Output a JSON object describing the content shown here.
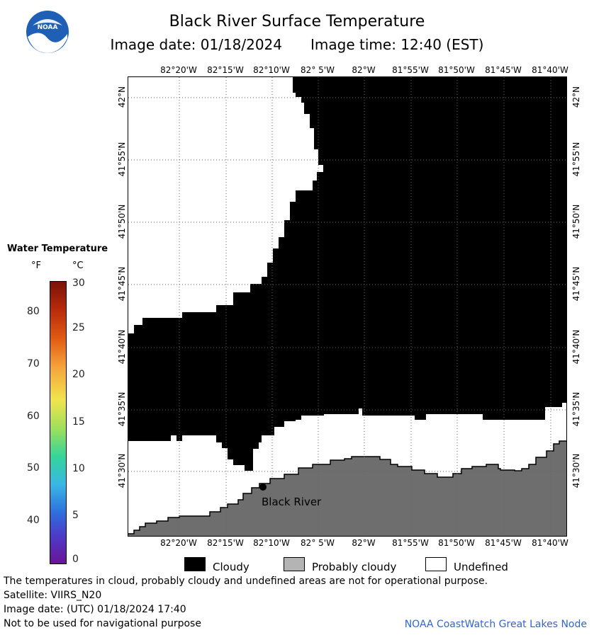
{
  "header": {
    "title": "Black River Surface Temperature",
    "image_date": "Image date: 01/18/2024",
    "image_time": "Image time: 12:40 (EST)",
    "logo_text": "NOAA"
  },
  "colorbar": {
    "title": "Water Temperature",
    "unit_f": "°F",
    "unit_c": "°C",
    "f_ticks": [
      "80",
      "70",
      "60",
      "50",
      "40"
    ],
    "c_ticks": [
      "30",
      "25",
      "20",
      "15",
      "10",
      "5",
      "0"
    ]
  },
  "map": {
    "lon_labels": [
      "82°20'W",
      "82°15'W",
      "82°10'W",
      "82° 5'W",
      "82°W",
      "81°55'W",
      "81°50'W",
      "81°45'W",
      "81°40'W"
    ],
    "lat_labels": [
      "42°N",
      "41°55'N",
      "41°50'N",
      "41°45'N",
      "41°40'N",
      "41°35'N",
      "41°30'N"
    ],
    "place_label": "Black River",
    "colors": {
      "cloud": "#000000",
      "land": "#6e6e6e",
      "undefined": "#ffffff",
      "grid": "#666666"
    }
  },
  "legend": {
    "cloudy": "Cloudy",
    "probably_cloudy": "Probably cloudy",
    "undefined": "Undefined",
    "probably_cloudy_color": "#b4b4b4"
  },
  "footer": {
    "disclaimer": "The temperatures in cloud, probably cloudy and undefined areas are not for operational purpose.",
    "satellite": "Satellite: VIIRS_N20",
    "utc_date": "Image date: (UTC) 01/18/2024  17:40",
    "nav_warning": "Not to be used for navigational purpose",
    "credit": "NOAA CoastWatch Great Lakes Node"
  }
}
